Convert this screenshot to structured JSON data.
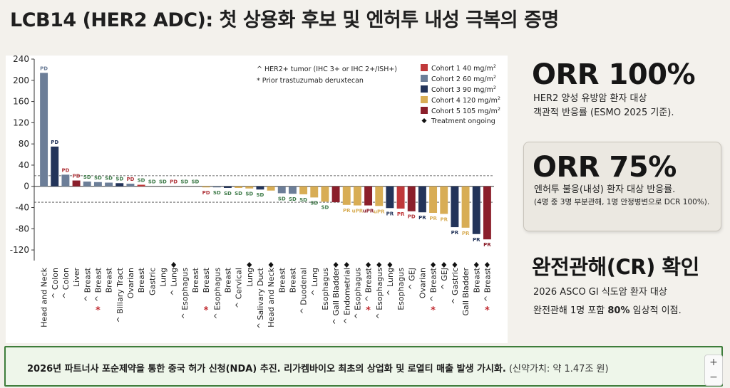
{
  "header": {
    "title": "LCB14 (HER2 ADC): 첫 상용화 후보 및 엔허투 내성 극복의 증명"
  },
  "side": {
    "orr_all": {
      "value": "ORR 100%",
      "line1": "HER2 양성 유방암 환자 대상",
      "line2": "객관적 반응률 (ESMO 2025 기준)."
    },
    "orr_resistant": {
      "value": "ORR 75%",
      "line1": "엔허투 불응(내성) 환자 대상 반응률.",
      "line2": "(4명 중 3명 부분관해, 1명 안정병변으로 DCR 100%)."
    },
    "cr": {
      "value": "완전관해(CR) 확인",
      "line1": "2026 ASCO GI 식도암 환자 대상",
      "line2_pre": "완전관해 1명 포함 ",
      "line2_bold": "80%",
      "line2_post": " 임상적 이점."
    }
  },
  "footer": {
    "main": "2026년 파트너사 포순제약을 통한 중국 허가 신청(NDA) 추진. 리가켐바이오 최초의 상업화 및 로열티 매출 발생 가시화.",
    "note": "(신약가치: 약 1.47조 원)"
  },
  "zoom": {
    "in": "+",
    "out": "−"
  },
  "chart_data": {
    "type": "bar",
    "title": "",
    "xlabel": "",
    "ylabel": "",
    "ylim": [
      -140,
      240
    ],
    "yticks": [
      240,
      200,
      160,
      120,
      80,
      40,
      0,
      -40,
      -80,
      -120
    ],
    "reference_lines": [
      20,
      -30
    ],
    "cohorts": [
      {
        "id": "c1",
        "label": "Cohort 1 40 mg/m",
        "sup": "2",
        "color": "#c0383a"
      },
      {
        "id": "c2",
        "label": "Cohort 2 60 mg/m",
        "sup": "2",
        "color": "#6c7e98"
      },
      {
        "id": "c3",
        "label": "Cohort 3 90 mg/m",
        "sup": "2",
        "color": "#23345a"
      },
      {
        "id": "c4",
        "label": "Cohort 4 120 mg/m",
        "sup": "2",
        "color": "#d8ad55"
      },
      {
        "id": "c5",
        "label": "Cohort 5 105 mg/m",
        "sup": "2",
        "color": "#8b1f2b"
      }
    ],
    "legend_extra": {
      "ongoing": "Treatment ongoing",
      "her2_note": "^ HER2+ tumor (IHC 3+ or IHC 2+/ISH+)",
      "prior_note": "* Prior trastuzumab deruxtecan"
    },
    "bars": [
      {
        "cat": "Head and Neck",
        "value": 214,
        "cohort": "c2",
        "resp": "PD",
        "her2": false,
        "prior": false,
        "ongoing": false
      },
      {
        "cat": "Colon",
        "value": 75,
        "cohort": "c3",
        "resp": "PD",
        "her2": true,
        "prior": false,
        "ongoing": false
      },
      {
        "cat": "Colon",
        "value": 22,
        "cohort": "c2",
        "resp": "PD",
        "her2": true,
        "prior": false,
        "ongoing": false
      },
      {
        "cat": "Liver",
        "value": 11,
        "cohort": "c5",
        "resp": "PD",
        "her2": false,
        "prior": false,
        "ongoing": false
      },
      {
        "cat": "Breast",
        "value": 9,
        "cohort": "c2",
        "resp": "SD",
        "her2": true,
        "prior": false,
        "ongoing": false
      },
      {
        "cat": "Breast",
        "value": 8,
        "cohort": "c2",
        "resp": "SD",
        "her2": true,
        "prior": true,
        "ongoing": false
      },
      {
        "cat": "Breast",
        "value": 7,
        "cohort": "c2",
        "resp": "SD",
        "her2": false,
        "prior": false,
        "ongoing": false
      },
      {
        "cat": "Biliary Tract",
        "value": 6,
        "cohort": "c3",
        "resp": "SD",
        "her2": true,
        "prior": false,
        "ongoing": false
      },
      {
        "cat": "Ovarian",
        "value": 5,
        "cohort": "c2",
        "resp": "PD",
        "her2": false,
        "prior": false,
        "ongoing": false
      },
      {
        "cat": "Breast",
        "value": 3,
        "cohort": "c1",
        "resp": "SD",
        "her2": false,
        "prior": false,
        "ongoing": false
      },
      {
        "cat": "Gastric",
        "value": 0,
        "cohort": "c2",
        "resp": "SD",
        "her2": false,
        "prior": false,
        "ongoing": false
      },
      {
        "cat": "Lung",
        "value": 0,
        "cohort": "c2",
        "resp": "SD",
        "her2": false,
        "prior": false,
        "ongoing": false
      },
      {
        "cat": "Lung",
        "value": 0,
        "cohort": "c2",
        "resp": "PD",
        "her2": true,
        "prior": false,
        "ongoing": true
      },
      {
        "cat": "Esophagus",
        "value": 0,
        "cohort": "c2",
        "resp": "SD",
        "her2": true,
        "prior": false,
        "ongoing": false
      },
      {
        "cat": "Breast",
        "value": 0,
        "cohort": "c3",
        "resp": "SD",
        "her2": false,
        "prior": false,
        "ongoing": false
      },
      {
        "cat": "Breast",
        "value": -2,
        "cohort": "c4",
        "resp": "PD",
        "her2": false,
        "prior": true,
        "ongoing": false
      },
      {
        "cat": "Esophagus",
        "value": -2,
        "cohort": "c2",
        "resp": "SD",
        "her2": true,
        "prior": false,
        "ongoing": false
      },
      {
        "cat": "Breast",
        "value": -3,
        "cohort": "c3",
        "resp": "SD",
        "her2": false,
        "prior": false,
        "ongoing": false
      },
      {
        "cat": "Cervical",
        "value": -3,
        "cohort": "c4",
        "resp": "SD",
        "her2": true,
        "prior": false,
        "ongoing": false
      },
      {
        "cat": "Lung",
        "value": -4,
        "cohort": "c4",
        "resp": "SD",
        "her2": false,
        "prior": false,
        "ongoing": true
      },
      {
        "cat": "Salivary Duct",
        "value": -6,
        "cohort": "c3",
        "resp": "SD",
        "her2": true,
        "prior": false,
        "ongoing": false
      },
      {
        "cat": "Head and Neck",
        "value": -8,
        "cohort": "c4",
        "resp": "",
        "her2": false,
        "prior": false,
        "ongoing": true
      },
      {
        "cat": "Breast",
        "value": -13,
        "cohort": "c2",
        "resp": "SD",
        "her2": false,
        "prior": false,
        "ongoing": false
      },
      {
        "cat": "Breast",
        "value": -14,
        "cohort": "c2",
        "resp": "SD",
        "her2": false,
        "prior": false,
        "ongoing": false
      },
      {
        "cat": "Duodenal",
        "value": -15,
        "cohort": "c4",
        "resp": "SD",
        "her2": true,
        "prior": false,
        "ongoing": false
      },
      {
        "cat": "Lung",
        "value": -21,
        "cohort": "c4",
        "resp": "SD",
        "her2": true,
        "prior": false,
        "ongoing": false
      },
      {
        "cat": "Esophagus",
        "value": -29,
        "cohort": "c4",
        "resp": "SD",
        "her2": false,
        "prior": false,
        "ongoing": false
      },
      {
        "cat": "Gall Bladder",
        "value": -30,
        "cohort": "c5",
        "resp": "",
        "her2": true,
        "prior": false,
        "ongoing": true
      },
      {
        "cat": "Endometrial",
        "value": -35,
        "cohort": "c4",
        "resp": "PR",
        "her2": true,
        "prior": false,
        "ongoing": true
      },
      {
        "cat": "Esophagus",
        "value": -36,
        "cohort": "c4",
        "resp": "uPR",
        "her2": true,
        "prior": false,
        "ongoing": false
      },
      {
        "cat": "Breast",
        "value": -36,
        "cohort": "c5",
        "resp": "uPR",
        "her2": true,
        "prior": true,
        "ongoing": true
      },
      {
        "cat": "Esophagus",
        "value": -37,
        "cohort": "c4",
        "resp": "uPR",
        "her2": true,
        "prior": false,
        "ongoing": true
      },
      {
        "cat": "Lung",
        "value": -41,
        "cohort": "c3",
        "resp": "PR",
        "her2": true,
        "prior": false,
        "ongoing": true
      },
      {
        "cat": "Esophagus",
        "value": -42,
        "cohort": "c1",
        "resp": "PR",
        "her2": false,
        "prior": false,
        "ongoing": false
      },
      {
        "cat": "GEJ",
        "value": -47,
        "cohort": "c5",
        "resp": "PD",
        "her2": true,
        "prior": false,
        "ongoing": false
      },
      {
        "cat": "Ovarian",
        "value": -49,
        "cohort": "c3",
        "resp": "PR",
        "her2": false,
        "prior": false,
        "ongoing": false
      },
      {
        "cat": "Breast",
        "value": -50,
        "cohort": "c4",
        "resp": "PR",
        "her2": true,
        "prior": true,
        "ongoing": true
      },
      {
        "cat": "GEJ",
        "value": -52,
        "cohort": "c4",
        "resp": "PR",
        "her2": true,
        "prior": false,
        "ongoing": true
      },
      {
        "cat": "Gastric",
        "value": -77,
        "cohort": "c3",
        "resp": "PR",
        "her2": true,
        "prior": false,
        "ongoing": true
      },
      {
        "cat": "Gall Bladder",
        "value": -78,
        "cohort": "c4",
        "resp": "PR",
        "her2": false,
        "prior": false,
        "ongoing": false
      },
      {
        "cat": "Breast",
        "value": -90,
        "cohort": "c3",
        "resp": "PR",
        "her2": false,
        "prior": false,
        "ongoing": true
      },
      {
        "cat": "Breast",
        "value": -100,
        "cohort": "c5",
        "resp": "PR",
        "her2": true,
        "prior": true,
        "ongoing": true
      }
    ]
  }
}
